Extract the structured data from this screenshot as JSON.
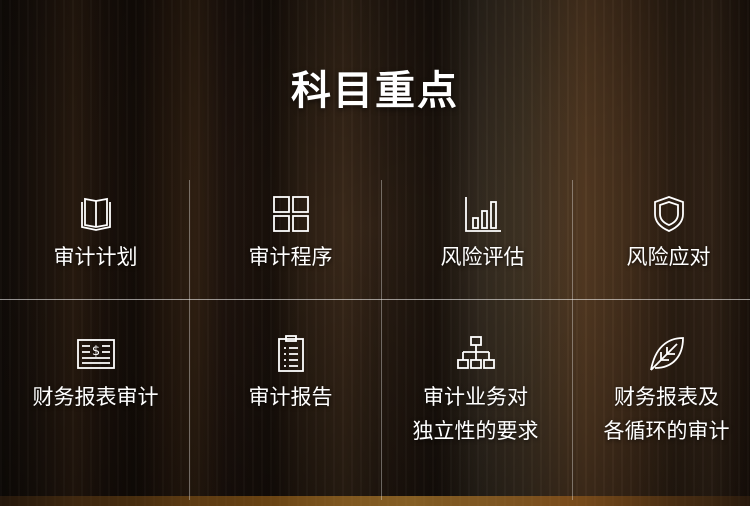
{
  "title": "科目重点",
  "items": [
    {
      "label": "审计计划",
      "icon": "book-icon"
    },
    {
      "label": "审计程序",
      "icon": "grid-icon"
    },
    {
      "label": "风险评估",
      "icon": "bar-chart-icon"
    },
    {
      "label": "风险应对",
      "icon": "shield-icon"
    },
    {
      "label": "财务报表审计",
      "icon": "financial-statement-icon"
    },
    {
      "label": "审计报告",
      "icon": "clipboard-icon"
    },
    {
      "label": "审计业务对\n独立性的要求",
      "icon": "org-chart-icon"
    },
    {
      "label": "财务报表及\n各循环的审计",
      "icon": "leaf-icon"
    }
  ]
}
